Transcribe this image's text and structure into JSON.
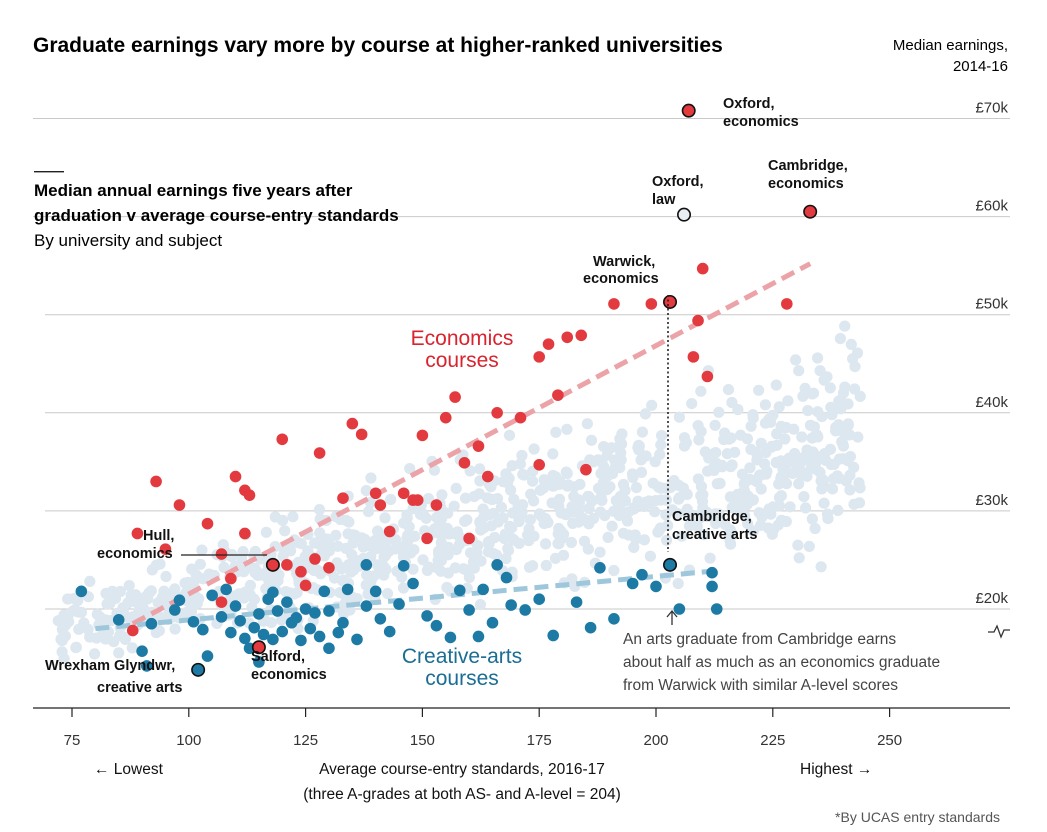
{
  "header": {
    "title": "Graduate earnings vary more by course at higher-ranked universities",
    "corner_line1": "Median earnings,",
    "corner_line2": "2014-16"
  },
  "subtitle": {
    "line1": "Median annual earnings five years after",
    "line2": "graduation v average course-entry standards",
    "line3": "By university and subject"
  },
  "annotations": {
    "oxford_econ": [
      "Oxford,",
      "economics"
    ],
    "oxford_law": [
      "Oxford,",
      "law"
    ],
    "cambridge_econ": [
      "Cambridge,",
      "economics"
    ],
    "warwick_econ": [
      "Warwick,",
      "economics"
    ],
    "hull_econ": [
      "Hull,",
      "economics"
    ],
    "cambridge_arts": [
      "Cambridge,",
      "creative arts"
    ],
    "wrexham_arts": [
      "Wrexham Glyndwr,",
      "creative arts"
    ],
    "salford_econ": [
      "Salford,",
      "economics"
    ],
    "econ_series": [
      "Economics",
      "courses"
    ],
    "arts_series": [
      "Creative-arts",
      "courses"
    ],
    "note": [
      "An arts graduate from Cambridge earns",
      "about half as much as an economics graduate",
      "from Warwick with similar A-level scores"
    ]
  },
  "axis": {
    "x_title_line1": "Average course-entry standards, 2016-17",
    "x_title_line2": "(three A-grades at both AS- and A-level = 204)",
    "lowest": "← Lowest",
    "highest": "Highest →",
    "footnote": "*By UCAS entry standards"
  },
  "colors": {
    "economics": "#e23a3f",
    "creative_arts": "#1d7aa4",
    "other": "#dde7ef",
    "econ_trend": "#eca3a8",
    "arts_trend": "#9ec7dc"
  },
  "chart_data": {
    "type": "scatter",
    "x_ticks": [
      75,
      100,
      125,
      150,
      175,
      200,
      225,
      250
    ],
    "x_tick_labels": [
      "75",
      "100",
      "125",
      "150",
      "175",
      "200",
      "225",
      "250"
    ],
    "y_ticks": [
      20,
      30,
      40,
      50,
      60,
      70
    ],
    "y_tick_labels": [
      "£20k",
      "£30k",
      "£40k",
      "£50k",
      "£60k",
      "£70k"
    ],
    "xlim": [
      70,
      250
    ],
    "ylim": [
      15,
      72
    ],
    "grid": "horizontal",
    "series": [
      {
        "name": "Economics courses",
        "points": [
          [
            120,
            37.3
          ],
          [
            128,
            35.9
          ],
          [
            133,
            31.3
          ],
          [
            135,
            38.9
          ],
          [
            137,
            37.8
          ],
          [
            140,
            31.8
          ],
          [
            141,
            30.6
          ],
          [
            143,
            27.9
          ],
          [
            146,
            31.8
          ],
          [
            148,
            31.1
          ],
          [
            149,
            31.1
          ],
          [
            150,
            37.7
          ],
          [
            151,
            27.2
          ],
          [
            153,
            30.6
          ],
          [
            155,
            39.5
          ],
          [
            157,
            41.6
          ],
          [
            159,
            34.9
          ],
          [
            160,
            27.2
          ],
          [
            162,
            36.6
          ],
          [
            164,
            33.5
          ],
          [
            166,
            40.0
          ],
          [
            171,
            39.5
          ],
          [
            175,
            45.7
          ],
          [
            177,
            47.0
          ],
          [
            179,
            41.8
          ],
          [
            181,
            47.7
          ],
          [
            184,
            47.9
          ],
          [
            175,
            34.7
          ],
          [
            185,
            34.2
          ],
          [
            191,
            51.1
          ],
          [
            199,
            51.1
          ],
          [
            208,
            45.7
          ],
          [
            209,
            49.4
          ],
          [
            210,
            54.7
          ],
          [
            211,
            43.7
          ],
          [
            228,
            51.1
          ],
          [
            93,
            33.0
          ],
          [
            98,
            30.6
          ],
          [
            104,
            28.7
          ],
          [
            110,
            33.5
          ],
          [
            112,
            32.1
          ],
          [
            113,
            31.6
          ],
          [
            112,
            27.7
          ],
          [
            107,
            25.6
          ],
          [
            109,
            23.1
          ],
          [
            121,
            24.5
          ],
          [
            124,
            23.8
          ],
          [
            127,
            25.1
          ],
          [
            89,
            27.7
          ],
          [
            95,
            26.1
          ],
          [
            88,
            17.8
          ],
          [
            107,
            20.7
          ],
          [
            125,
            22.4
          ],
          [
            130,
            24.2
          ]
        ]
      },
      {
        "name": "Creative-arts courses",
        "points": [
          [
            77,
            21.8
          ],
          [
            85,
            18.9
          ],
          [
            90,
            15.7
          ],
          [
            92,
            18.5
          ],
          [
            97,
            19.9
          ],
          [
            101,
            18.7
          ],
          [
            103,
            17.9
          ],
          [
            105,
            21.4
          ],
          [
            107,
            19.2
          ],
          [
            108,
            22.0
          ],
          [
            109,
            17.6
          ],
          [
            110,
            20.3
          ],
          [
            111,
            18.8
          ],
          [
            112,
            17.0
          ],
          [
            113,
            16.0
          ],
          [
            114,
            18.1
          ],
          [
            115,
            19.5
          ],
          [
            116,
            17.4
          ],
          [
            117,
            21.0
          ],
          [
            118,
            16.9
          ],
          [
            119,
            19.8
          ],
          [
            120,
            17.7
          ],
          [
            121,
            20.7
          ],
          [
            122,
            18.6
          ],
          [
            123,
            19.1
          ],
          [
            124,
            16.8
          ],
          [
            125,
            20.0
          ],
          [
            126,
            18.0
          ],
          [
            127,
            19.6
          ],
          [
            128,
            17.2
          ],
          [
            129,
            21.8
          ],
          [
            130,
            19.8
          ],
          [
            132,
            17.6
          ],
          [
            134,
            22.0
          ],
          [
            136,
            16.9
          ],
          [
            138,
            20.3
          ],
          [
            140,
            21.8
          ],
          [
            141,
            19.0
          ],
          [
            143,
            17.7
          ],
          [
            145,
            20.5
          ],
          [
            146,
            24.4
          ],
          [
            148,
            22.6
          ],
          [
            151,
            19.3
          ],
          [
            153,
            18.3
          ],
          [
            156,
            17.1
          ],
          [
            158,
            21.9
          ],
          [
            160,
            19.9
          ],
          [
            163,
            22.0
          ],
          [
            165,
            18.6
          ],
          [
            166,
            24.5
          ],
          [
            168,
            23.2
          ],
          [
            169,
            20.4
          ],
          [
            172,
            19.9
          ],
          [
            175,
            21.0
          ],
          [
            178,
            17.3
          ],
          [
            183,
            20.7
          ],
          [
            186,
            18.1
          ],
          [
            191,
            19.0
          ],
          [
            195,
            22.6
          ],
          [
            197,
            23.5
          ],
          [
            200,
            22.3
          ],
          [
            205,
            20.0
          ],
          [
            212,
            22.3
          ],
          [
            213,
            20.0
          ],
          [
            104,
            15.2
          ],
          [
            130,
            16.0
          ],
          [
            138,
            24.5
          ],
          [
            188,
            24.2
          ],
          [
            118,
            21.7
          ],
          [
            98,
            20.9
          ],
          [
            91,
            14.2
          ],
          [
            115,
            14.6
          ],
          [
            133,
            18.6
          ],
          [
            162,
            17.2
          ],
          [
            212,
            23.7
          ]
        ]
      },
      {
        "name": "Highlighted economics courses",
        "points": [
          [
            207,
            70.8
          ],
          [
            233,
            60.5
          ],
          [
            203,
            51.3
          ],
          [
            118,
            24.5
          ],
          [
            115,
            16.1
          ]
        ]
      },
      {
        "name": "Highlighted creative-arts courses",
        "points": [
          [
            206,
            60.2
          ],
          [
            203,
            24.5
          ],
          [
            102,
            13.8
          ]
        ]
      }
    ],
    "background": {
      "name": "All other courses",
      "x_range": [
        72,
        247
      ],
      "y_range": [
        14,
        55
      ]
    },
    "trend_lines": [
      {
        "name": "Economics courses",
        "from": [
          88,
          18.5
        ],
        "to": [
          233,
          55.2
        ]
      },
      {
        "name": "Creative-arts courses",
        "from": [
          80,
          18.0
        ],
        "to": [
          213,
          23.9
        ]
      }
    ]
  }
}
